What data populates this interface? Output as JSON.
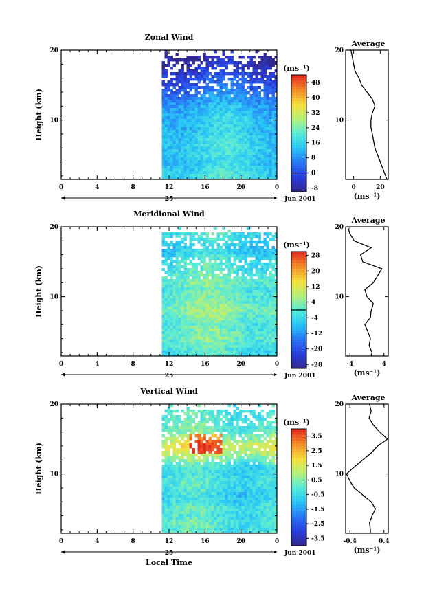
{
  "x_axis_label": "Local Time",
  "y_axis_label": "Height (km)",
  "average_title": "Average",
  "date_label": "Jun 2001",
  "day_label": "25",
  "x_tick_labels": [
    "0",
    "4",
    "8",
    "12",
    "16",
    "20",
    "0"
  ],
  "chart_data": [
    {
      "type": "heatmap",
      "title": "Zonal Wind",
      "xlabel": "",
      "ylabel": "Height (km)",
      "xlim": [
        0,
        24
      ],
      "ylim": [
        1.5,
        20
      ],
      "x_ticks": [
        0,
        4,
        8,
        12,
        16,
        20,
        24
      ],
      "y_ticks": [
        10,
        20
      ],
      "y_tick_labels": [
        "10",
        "20"
      ],
      "data_start_hour": 11.2,
      "colorbar": {
        "unit": "(ms⁻¹)",
        "range": [
          -10,
          52
        ],
        "tick_values": [
          -8,
          0,
          8,
          16,
          24,
          32,
          40,
          48
        ],
        "tick_labels": [
          "-8",
          "0",
          "8",
          "16",
          "24",
          "32",
          "40",
          "48"
        ],
        "zero_line": 0
      },
      "profile_estimate": {
        "height_km": [
          2,
          3,
          4,
          5,
          6,
          7,
          8,
          9,
          10,
          11,
          12,
          13,
          14,
          15,
          16,
          17,
          18,
          19
        ],
        "value": [
          18,
          16,
          15,
          16,
          17,
          16,
          15,
          14,
          14,
          13,
          11,
          8,
          5,
          2,
          0,
          -3,
          -6,
          -8
        ]
      },
      "average": {
        "xlim": [
          -6,
          26
        ],
        "x_ticks": [
          0,
          20
        ],
        "x_tick_labels": [
          "0",
          "20"
        ],
        "y_ticks": [
          10,
          20
        ],
        "y_tick_labels": [
          "10",
          "20"
        ],
        "xlabel": "(ms⁻¹)",
        "height_km": [
          1.5,
          2,
          3,
          4,
          5,
          6,
          7,
          8,
          9,
          10,
          11,
          12,
          13,
          14,
          15,
          16,
          17,
          18,
          19,
          20
        ],
        "values": [
          25,
          24,
          22,
          20,
          18,
          16,
          15,
          14,
          13,
          13,
          14,
          16,
          14,
          10,
          6,
          4,
          1,
          0,
          -1,
          -2
        ]
      }
    },
    {
      "type": "heatmap",
      "title": "Meridional Wind",
      "xlabel": "",
      "ylabel": "Height (km)",
      "xlim": [
        0,
        24
      ],
      "ylim": [
        1.5,
        20
      ],
      "x_ticks": [
        0,
        4,
        8,
        12,
        16,
        20,
        24
      ],
      "y_ticks": [
        10,
        20
      ],
      "y_tick_labels": [
        "10",
        "20"
      ],
      "data_start_hour": 11.2,
      "colorbar": {
        "unit": "(ms⁻¹)",
        "range": [
          -30,
          30
        ],
        "tick_values": [
          -28,
          -20,
          -12,
          -4,
          4,
          12,
          20,
          28
        ],
        "tick_labels": [
          "-28",
          "-20",
          "-12",
          "-4",
          "4",
          "12",
          "20",
          "28"
        ],
        "zero_line": 0
      },
      "profile_estimate": {
        "height_km": [
          2,
          3,
          4,
          5,
          6,
          7,
          8,
          9,
          10,
          11,
          12,
          13,
          14,
          15,
          16,
          17,
          18,
          19
        ],
        "value": [
          -2,
          0,
          2,
          1,
          0,
          2,
          4,
          3,
          1,
          0,
          2,
          1,
          -2,
          -1,
          -4,
          -6,
          -3,
          -2
        ]
      },
      "average": {
        "xlim": [
          -5,
          5
        ],
        "x_ticks": [
          -4,
          4
        ],
        "x_tick_labels": [
          "-4",
          "4"
        ],
        "y_ticks": [
          10,
          20
        ],
        "y_tick_labels": [
          "10",
          "20"
        ],
        "xlabel": "(ms⁻¹)",
        "height_km": [
          1.5,
          2,
          3,
          4,
          5,
          6,
          7,
          8,
          9,
          10,
          11,
          12,
          13,
          14,
          15,
          16,
          17,
          18,
          19,
          20
        ],
        "values": [
          1.0,
          1.2,
          0.5,
          0.8,
          0.2,
          -0.5,
          0.8,
          1.0,
          1.5,
          0.0,
          -0.5,
          1.5,
          2.5,
          3.5,
          -1.0,
          -1.5,
          1.0,
          -3.0,
          -4.0,
          -4.5
        ]
      }
    },
    {
      "type": "heatmap",
      "title": "Vertical Wind",
      "xlabel": "Local Time",
      "ylabel": "Height (km)",
      "xlim": [
        0,
        24
      ],
      "ylim": [
        1.5,
        20
      ],
      "x_ticks": [
        0,
        4,
        8,
        12,
        16,
        20,
        24
      ],
      "y_ticks": [
        10,
        20
      ],
      "y_tick_labels": [
        "10",
        "20"
      ],
      "data_start_hour": 11.2,
      "colorbar": {
        "unit": "(ms⁻¹)",
        "range": [
          -4,
          4
        ],
        "tick_values": [
          -3.5,
          -2.5,
          -1.5,
          -0.5,
          0.5,
          1.5,
          2.5,
          3.5
        ],
        "tick_labels": [
          "-3.5",
          "-2.5",
          "-1.5",
          "-0.5",
          "0.5",
          "1.5",
          "2.5",
          "3.5"
        ],
        "zero_line": null
      },
      "profile_estimate": {
        "height_km": [
          2,
          3,
          4,
          5,
          6,
          7,
          8,
          9,
          10,
          11,
          12,
          13,
          14,
          15,
          16,
          17,
          18,
          19
        ],
        "value": [
          -0.2,
          0.0,
          -0.3,
          0.0,
          -0.5,
          -0.6,
          -0.3,
          -0.2,
          -0.5,
          -0.4,
          0.4,
          1.2,
          1.6,
          0.8,
          0.2,
          0.0,
          -0.2,
          -0.1
        ]
      },
      "average": {
        "xlim": [
          -0.5,
          0.5
        ],
        "x_ticks": [
          -0.4,
          0.4
        ],
        "x_tick_labels": [
          "-0.4",
          "0.4"
        ],
        "y_ticks": [
          10,
          20
        ],
        "y_tick_labels": [
          "10",
          "20"
        ],
        "xlabel": "(ms⁻¹)",
        "height_km": [
          1.5,
          2,
          3,
          4,
          5,
          6,
          7,
          8,
          9,
          10,
          11,
          12,
          13,
          14,
          15,
          16,
          17,
          18,
          19,
          20
        ],
        "values": [
          0.08,
          0.08,
          0.06,
          0.12,
          0.2,
          0.1,
          -0.1,
          -0.3,
          -0.4,
          -0.48,
          -0.3,
          -0.1,
          0.1,
          0.25,
          0.48,
          0.3,
          0.15,
          0.05,
          0.1,
          0.06
        ]
      }
    }
  ]
}
